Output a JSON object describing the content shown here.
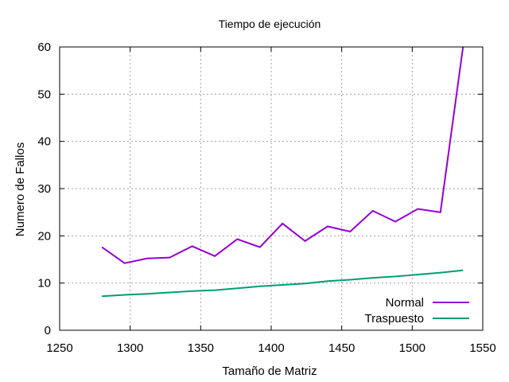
{
  "chart_data": {
    "type": "line",
    "title": "Tiempo de ejecución",
    "xlabel": "Tamaño de Matriz",
    "ylabel": "Numero de Fallos",
    "xlim": [
      1250,
      1550
    ],
    "ylim": [
      0,
      60
    ],
    "xticks": [
      1250,
      1300,
      1350,
      1400,
      1450,
      1500,
      1550
    ],
    "yticks": [
      0,
      10,
      20,
      30,
      40,
      50,
      60
    ],
    "grid": true,
    "legend_position": "bottom-right",
    "series": [
      {
        "name": "Normal",
        "color": "#9400d3",
        "x": [
          1280,
          1296,
          1312,
          1328,
          1344,
          1360,
          1376,
          1392,
          1408,
          1424,
          1440,
          1456,
          1472,
          1488,
          1504,
          1520,
          1536
        ],
        "y": [
          17.6,
          14.2,
          15.2,
          15.4,
          17.8,
          15.7,
          19.3,
          17.6,
          22.6,
          18.9,
          22.0,
          20.9,
          25.3,
          23.0,
          25.7,
          25.0,
          60.0
        ]
      },
      {
        "name": "Traspuesto",
        "color": "#009e73",
        "x": [
          1280,
          1296,
          1312,
          1328,
          1344,
          1360,
          1376,
          1392,
          1408,
          1424,
          1440,
          1456,
          1472,
          1488,
          1504,
          1520,
          1536
        ],
        "y": [
          7.2,
          7.5,
          7.7,
          8.0,
          8.3,
          8.5,
          8.9,
          9.3,
          9.6,
          9.9,
          10.4,
          10.7,
          11.1,
          11.4,
          11.8,
          12.2,
          12.7
        ]
      }
    ]
  }
}
